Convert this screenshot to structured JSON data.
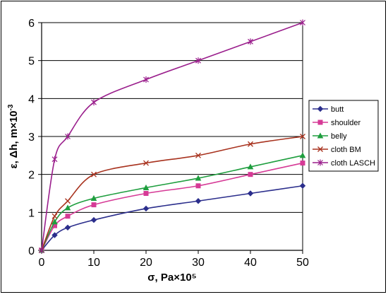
{
  "chart_data": {
    "type": "line",
    "xlabel": "σ, Pa×10⁵",
    "ylabel_main": "ε, Δh, m×10",
    "ylabel_exp": "-3",
    "xlim": [
      0,
      50
    ],
    "ylim": [
      0,
      6
    ],
    "x_ticks": [
      0,
      10,
      20,
      30,
      40,
      50
    ],
    "y_ticks": [
      0,
      1,
      2,
      3,
      4,
      5,
      6
    ],
    "grid": "horizontal",
    "legend_position": "right",
    "series": [
      {
        "name": "butt",
        "color": "#2B2E8C",
        "marker": "diamond",
        "x": [
          0,
          2.5,
          5,
          10,
          20,
          30,
          40,
          50
        ],
        "y": [
          0,
          0.4,
          0.6,
          0.8,
          1.1,
          1.3,
          1.5,
          1.7
        ]
      },
      {
        "name": "shoulder",
        "color": "#D63A96",
        "marker": "square",
        "x": [
          0,
          2.5,
          5,
          10,
          20,
          30,
          40,
          50
        ],
        "y": [
          0,
          0.65,
          0.9,
          1.2,
          1.5,
          1.7,
          2.0,
          2.3
        ]
      },
      {
        "name": "belly",
        "color": "#1E9E3E",
        "marker": "triangle",
        "x": [
          0,
          2.5,
          5,
          10,
          20,
          30,
          40,
          50
        ],
        "y": [
          0,
          0.75,
          1.12,
          1.37,
          1.65,
          1.9,
          2.2,
          2.5
        ]
      },
      {
        "name": "cloth BM",
        "color": "#A8321E",
        "marker": "x",
        "x": [
          0,
          2.5,
          5,
          10,
          20,
          30,
          40,
          50
        ],
        "y": [
          0,
          0.9,
          1.3,
          2.0,
          2.3,
          2.5,
          2.8,
          3.0
        ]
      },
      {
        "name": "cloth LASCH",
        "color": "#9A1E8C",
        "marker": "star",
        "x": [
          0,
          2.5,
          5,
          10,
          20,
          30,
          40,
          50
        ],
        "y": [
          0,
          2.4,
          3.0,
          3.9,
          4.5,
          5.0,
          5.5,
          6.0
        ]
      }
    ]
  }
}
